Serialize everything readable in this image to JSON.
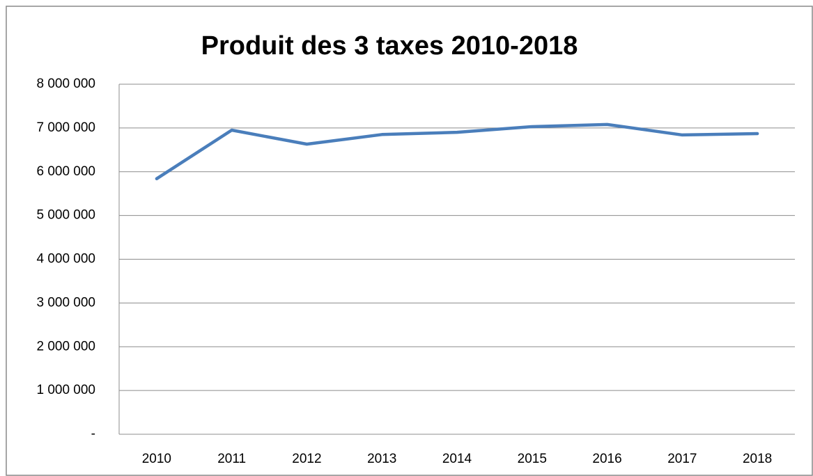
{
  "chart_data": {
    "type": "line",
    "title": "Produit des 3 taxes 2010-2018",
    "categories": [
      "2010",
      "2011",
      "2012",
      "2013",
      "2014",
      "2015",
      "2016",
      "2017",
      "2018"
    ],
    "series": [
      {
        "color": "#4a7ebb",
        "values": [
          5840000,
          6950000,
          6630000,
          6850000,
          6900000,
          7030000,
          7080000,
          6840000,
          6870000
        ]
      }
    ],
    "ylim": [
      0,
      8000000
    ],
    "yticks": [
      {
        "value": 0,
        "label": "-"
      },
      {
        "value": 1000000,
        "label": "1 000 000"
      },
      {
        "value": 2000000,
        "label": "2 000 000"
      },
      {
        "value": 3000000,
        "label": "3 000 000"
      },
      {
        "value": 4000000,
        "label": "4 000 000"
      },
      {
        "value": 5000000,
        "label": "5 000 000"
      },
      {
        "value": 6000000,
        "label": "6 000 000"
      },
      {
        "value": 7000000,
        "label": "7 000 000"
      },
      {
        "value": 8000000,
        "label": "8 000 000"
      }
    ],
    "grid": true
  }
}
